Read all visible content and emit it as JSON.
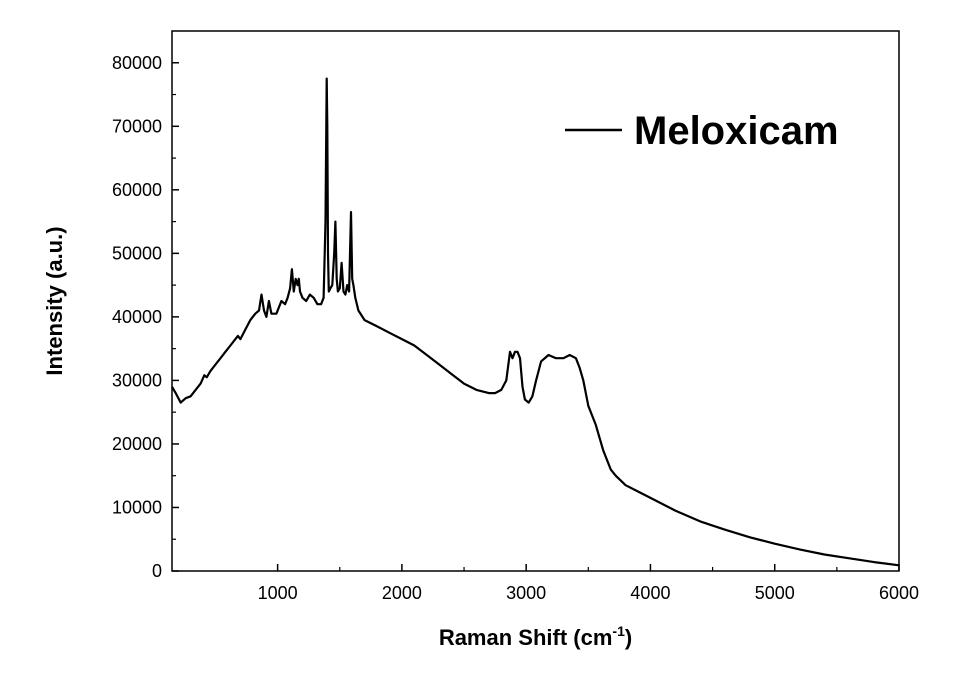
{
  "chart_data": {
    "type": "line",
    "title": "",
    "xlabel": "Raman Shift (cm",
    "xlabel_superscript": "-1",
    "xlabel_suffix": ")",
    "ylabel": "Intensity (a.u.)",
    "xlim": [
      150,
      6000
    ],
    "ylim": [
      0,
      85000
    ],
    "xticks": [
      "1000",
      "2000",
      "3000",
      "4000",
      "5000",
      "6000"
    ],
    "yticks": [
      "0",
      "10000",
      "20000",
      "30000",
      "40000",
      "50000",
      "60000",
      "70000",
      "80000"
    ],
    "grid": false,
    "legend_position": "top-right",
    "series_color": "#000000",
    "series": [
      {
        "name": "Meloxicam",
        "x": [
          150,
          180,
          220,
          260,
          300,
          340,
          380,
          410,
          430,
          460,
          500,
          540,
          580,
          620,
          660,
          680,
          700,
          740,
          780,
          820,
          850,
          870,
          890,
          910,
          930,
          950,
          990,
          1030,
          1060,
          1080,
          1100,
          1115,
          1130,
          1145,
          1160,
          1170,
          1180,
          1200,
          1230,
          1260,
          1290,
          1320,
          1350,
          1370,
          1385,
          1395,
          1400,
          1405,
          1412,
          1425,
          1440,
          1455,
          1465,
          1475,
          1485,
          1500,
          1515,
          1530,
          1545,
          1560,
          1575,
          1590,
          1600,
          1610,
          1625,
          1650,
          1700,
          1800,
          1900,
          2000,
          2100,
          2200,
          2300,
          2400,
          2500,
          2600,
          2700,
          2750,
          2800,
          2840,
          2870,
          2890,
          2910,
          2930,
          2950,
          2970,
          2990,
          3020,
          3050,
          3080,
          3120,
          3180,
          3240,
          3300,
          3350,
          3400,
          3430,
          3460,
          3500,
          3560,
          3620,
          3680,
          3720,
          3800,
          4000,
          4200,
          4400,
          4600,
          4800,
          5000,
          5200,
          5400,
          5600,
          5800,
          6000
        ],
        "values": [
          29000,
          28000,
          26500,
          27200,
          27500,
          28500,
          29500,
          30800,
          30500,
          31500,
          32500,
          33500,
          34500,
          35500,
          36500,
          37000,
          36500,
          38000,
          39500,
          40500,
          41000,
          43500,
          41000,
          40000,
          42500,
          40500,
          40500,
          42500,
          42000,
          43000,
          44500,
          47500,
          44000,
          46000,
          45000,
          46000,
          44000,
          43000,
          42500,
          43500,
          43000,
          42000,
          42000,
          43000,
          55000,
          77500,
          70000,
          50000,
          44000,
          44500,
          45000,
          50000,
          55000,
          46000,
          44000,
          44500,
          48500,
          44000,
          43500,
          45000,
          44000,
          56500,
          46000,
          45000,
          43000,
          41000,
          39500,
          38500,
          37500,
          36500,
          35500,
          34000,
          32500,
          31000,
          29500,
          28500,
          28000,
          28000,
          28500,
          30000,
          34500,
          33500,
          34500,
          34500,
          33500,
          29000,
          27000,
          26500,
          27500,
          30000,
          33000,
          34000,
          33500,
          33500,
          34000,
          33500,
          32000,
          30000,
          26000,
          23000,
          19000,
          16000,
          15000,
          13500,
          11500,
          9500,
          7800,
          6500,
          5300,
          4300,
          3400,
          2600,
          2000,
          1400,
          900
        ]
      }
    ]
  }
}
